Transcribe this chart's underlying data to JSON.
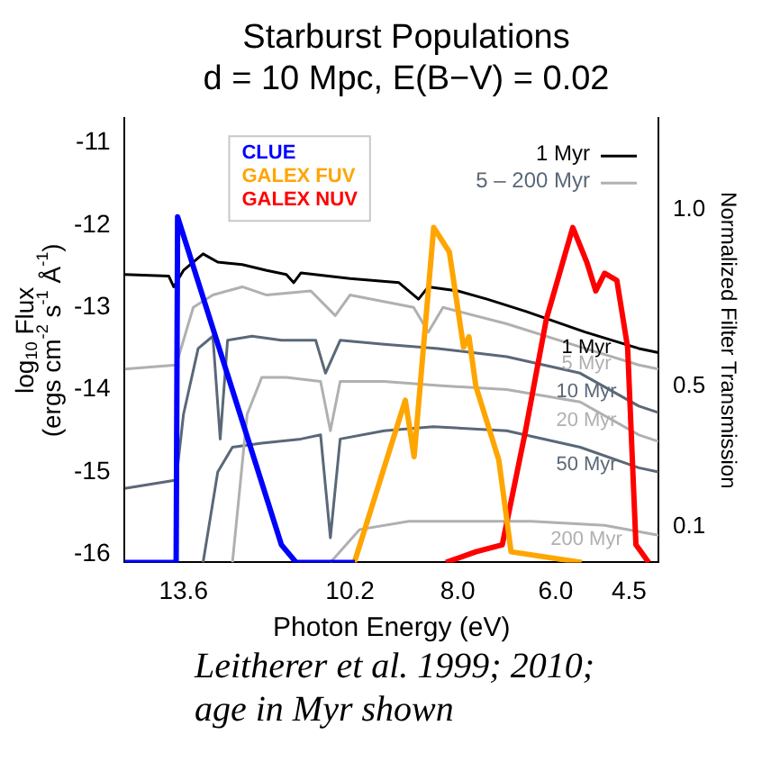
{
  "chart_data": {
    "type": "line",
    "title": "Starburst Populations",
    "subtitle": "d = 10 Mpc, E(B−V) = 0.02",
    "xlabel": "Photon Energy (eV)",
    "ylabel": "log$_{10}$ Flux\n(ergs cm$^{-2}$ s$^{-1}$ Å$^{-1}$)",
    "y2label": "Normalized Filter Transmission",
    "xlim": [
      14.8,
      3.9
    ],
    "xticks": [
      13.6,
      10.2,
      {
        "value": 8,
        "label": "8.0"
      },
      {
        "value": 6,
        "label": "6.0"
      },
      4.5
    ],
    "ylim": [
      -16.1,
      -10.7
    ],
    "yticks": [
      -16,
      -15,
      -14,
      -13,
      -12,
      -11
    ],
    "y2lim": [
      0,
      1.26
    ],
    "y2ticks": [
      {
        "value": 0.1,
        "label": "0.1"
      },
      {
        "value": 0.5,
        "label": "0.5"
      },
      {
        "value": 1,
        "label": "1.0"
      }
    ],
    "grid": false,
    "legend": "top",
    "line_style": "solid",
    "marker": "none",
    "annotations": [
      "5 – 200 Myr",
      "Leitherer et al. 1999; 2010; age in Myr shown"
    ],
    "series": [
      {
        "name": "1 Myr",
        "color": "#000000",
        "x": [
          14.8,
          13.9,
          13.8,
          13.6,
          13.2,
          12.9,
          12.4,
          11.9,
          11.5,
          11.35,
          11.2,
          10.2,
          9.2,
          8.8,
          8.6,
          8.0,
          7.4,
          6.6,
          5.4,
          4.3,
          3.9
        ],
        "values": [
          -12.6,
          -12.62,
          -12.75,
          -12.55,
          -12.35,
          -12.45,
          -12.48,
          -12.55,
          -12.6,
          -12.7,
          -12.58,
          -12.65,
          -12.7,
          -12.9,
          -12.75,
          -12.8,
          -12.9,
          -13.05,
          -13.3,
          -13.5,
          -13.55
        ]
      },
      {
        "name": "5 Myr",
        "color": "#b0b0b0",
        "x": [
          14.8,
          13.75,
          13.4,
          13.0,
          12.4,
          11.9,
          11.0,
          10.5,
          10.2,
          8.9,
          8.6,
          8.3,
          7.0,
          5.4,
          4.3,
          3.9
        ],
        "values": [
          -13.75,
          -13.7,
          -13.0,
          -12.85,
          -12.75,
          -12.85,
          -12.8,
          -13.1,
          -12.85,
          -13.0,
          -13.3,
          -13.0,
          -13.2,
          -13.5,
          -13.7,
          -13.75
        ]
      },
      {
        "name": "10 Myr",
        "color": "#5a6878",
        "x": [
          14.8,
          13.75,
          13.6,
          13.3,
          13.0,
          12.85,
          12.7,
          12.2,
          11.6,
          10.9,
          10.7,
          10.4,
          9.5,
          8.4,
          7.0,
          5.5,
          4.3,
          3.9
        ],
        "values": [
          -15.2,
          -15.1,
          -14.3,
          -13.5,
          -13.35,
          -14.6,
          -13.4,
          -13.35,
          -13.4,
          -13.4,
          -13.8,
          -13.4,
          -13.45,
          -13.5,
          -13.6,
          -13.8,
          -14.2,
          -14.28
        ]
      },
      {
        "name": "20 Myr",
        "color": "#b0b0b0",
        "x": [
          12.6,
          12.3,
          12.0,
          11.5,
          10.8,
          10.6,
          10.4,
          9.5,
          8.4,
          7.0,
          5.5,
          4.3,
          3.9
        ],
        "values": [
          -16.1,
          -14.3,
          -13.85,
          -13.85,
          -13.9,
          -14.5,
          -13.9,
          -13.9,
          -13.95,
          -14.0,
          -14.15,
          -14.55,
          -14.63
        ]
      },
      {
        "name": "50 Myr",
        "color": "#5a6878",
        "x": [
          13.2,
          12.9,
          12.6,
          12.0,
          11.2,
          10.8,
          10.6,
          10.4,
          9.5,
          8.5,
          7.0,
          5.5,
          4.3,
          3.9
        ],
        "values": [
          -16.1,
          -15.0,
          -14.7,
          -14.65,
          -14.6,
          -14.55,
          -15.8,
          -14.6,
          -14.5,
          -14.45,
          -14.5,
          -14.7,
          -14.95,
          -15.0
        ]
      },
      {
        "name": "200 Myr",
        "color": "#b0b0b0",
        "x": [
          10.6,
          10.0,
          9.0,
          8.0,
          6.5,
          5.0,
          3.9
        ],
        "values": [
          -16.1,
          -15.7,
          -15.6,
          -15.6,
          -15.6,
          -15.65,
          -15.77
        ]
      },
      {
        "name": "CLUE",
        "color": "#0000ff",
        "axis": "y2",
        "x": [
          14.8,
          13.75,
          13.72,
          11.6,
          11.3,
          10.1
        ],
        "values": [
          0,
          0,
          0.98,
          0.05,
          0,
          0
        ]
      },
      {
        "name": "GALEX FUV",
        "color": "#ffa500",
        "axis": "y2",
        "x": [
          10.11,
          9.07,
          8.89,
          8.49,
          8.17,
          7.88,
          7.77,
          7.63,
          7.16,
          6.91,
          5.47
        ],
        "values": [
          0,
          0.46,
          0.3,
          0.95,
          0.88,
          0.61,
          0.64,
          0.5,
          0.29,
          0.03,
          0
        ]
      },
      {
        "name": "GALEX NUV",
        "color": "#ff0000",
        "axis": "y2",
        "x": [
          8.24,
          7.63,
          7.09,
          6.62,
          6.19,
          5.65,
          5.36,
          5.18,
          5.0,
          4.75,
          4.53,
          4.36,
          4.1
        ],
        "values": [
          0,
          0.03,
          0.05,
          0.37,
          0.69,
          0.95,
          0.85,
          0.77,
          0.82,
          0.8,
          0.61,
          0.05,
          0
        ]
      }
    ]
  }
}
